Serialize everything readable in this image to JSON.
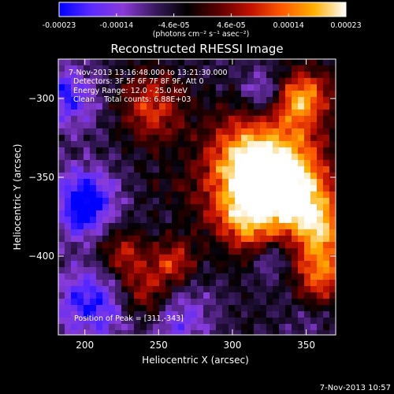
{
  "colorbar": {
    "ticks": [
      "-0.00023",
      "-0.00014",
      "-4.6e-05",
      "4.6e-05",
      "0.00014",
      "0.00023"
    ],
    "units": "(photons cm⁻² s⁻¹ asec⁻²)",
    "colors": [
      "#0000ff",
      "#5a2bff",
      "#8a3bd8",
      "#3a1a60",
      "#000000",
      "#5a0000",
      "#c01000",
      "#ff5a00",
      "#ffb000",
      "#ffffff"
    ]
  },
  "chart_data": {
    "type": "heatmap",
    "title": "Reconstructed RHESSI Image",
    "xlabel": "Heliocentric X (arcsec)",
    "ylabel": "Heliocentric Y (arcsec)",
    "xlim": [
      182,
      370
    ],
    "ylim": [
      -450,
      -275
    ],
    "xticks": [
      200,
      250,
      300,
      350
    ],
    "yticks": [
      -300,
      -350,
      -400
    ],
    "annotations": [
      "7-Nov-2013 13:16:48.000 to 13:21:30.000",
      "Detectors: 3F 5F 6F 7F 8F 9F, Att 0",
      "Energy Range: 12.0 - 25.0 keV",
      "Clean    Total counts: 6.88E+03"
    ],
    "peak_label": "Position of Peak = [311,-343]",
    "peak": [
      311,
      -343
    ],
    "colorbar_range": [
      -0.00023,
      0.00023
    ]
  },
  "footer": {
    "timestamp": "7-Nov-2013 10:57"
  }
}
